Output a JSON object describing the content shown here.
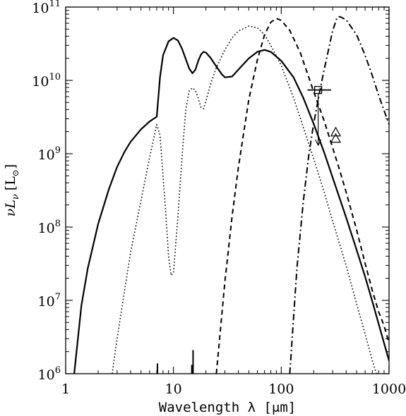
{
  "chart_data": {
    "type": "line",
    "title": "",
    "xlabel": "Wavelength λ [μm]",
    "ylabel": "νL",
    "ylabel_subscript": "ν",
    "ylabel_unit": "[L",
    "ylabel_unit_tail": "]",
    "x_scale": "log",
    "y_scale": "log",
    "xlim": [
      1,
      1000
    ],
    "ylim": [
      1000000,
      100000000000
    ],
    "grid": false,
    "legend": "none",
    "x_ticks": [
      {
        "value": 1,
        "label": "1"
      },
      {
        "value": 10,
        "label": "10"
      },
      {
        "value": 100,
        "label": "100"
      },
      {
        "value": 1000,
        "label": "1000"
      }
    ],
    "y_ticks": [
      {
        "value": 1000000,
        "base": "10",
        "exp": "6"
      },
      {
        "value": 10000000,
        "base": "10",
        "exp": "7"
      },
      {
        "value": 100000000,
        "base": "10",
        "exp": "8"
      },
      {
        "value": 1000000000,
        "base": "10",
        "exp": "9"
      },
      {
        "value": 10000000000,
        "base": "10",
        "exp": "10"
      },
      {
        "value": 100000000000,
        "base": "10",
        "exp": "11"
      }
    ],
    "series": [
      {
        "style": "solid",
        "points": [
          [
            1.2,
            1000000
          ],
          [
            1.4,
            8500000
          ],
          [
            1.6,
            27000000
          ],
          [
            2,
            110000000
          ],
          [
            2.5,
            320000000
          ],
          [
            3,
            660000000
          ],
          [
            3.5,
            1050000000
          ],
          [
            4,
            1450000000
          ],
          [
            5,
            2150000000
          ],
          [
            6,
            2750000000
          ],
          [
            7,
            3200000000
          ],
          [
            7.5,
            11000000000
          ],
          [
            8,
            22000000000
          ],
          [
            9,
            34000000000
          ],
          [
            10,
            38000000000
          ],
          [
            11,
            35000000000
          ],
          [
            12,
            27000000000
          ],
          [
            13,
            19500000000
          ],
          [
            14,
            14500000000
          ],
          [
            15,
            12500000000
          ],
          [
            16,
            14000000000
          ],
          [
            17,
            18500000000
          ],
          [
            18,
            22500000000
          ],
          [
            19,
            24500000000
          ],
          [
            20,
            24000000000
          ],
          [
            22,
            20500000000
          ],
          [
            25,
            15500000000
          ],
          [
            28,
            12200000000
          ],
          [
            30,
            11000000000
          ],
          [
            35,
            11300000000
          ],
          [
            40,
            14000000000
          ],
          [
            50,
            20000000000
          ],
          [
            60,
            24500000000
          ],
          [
            70,
            26000000000
          ],
          [
            80,
            24500000000
          ],
          [
            100,
            18500000000
          ],
          [
            130,
            11000000000
          ],
          [
            160,
            5800000000
          ],
          [
            200,
            2550000000
          ],
          [
            250,
            1040000000
          ],
          [
            300,
            470000000
          ],
          [
            400,
            135000000
          ],
          [
            500,
            49000000
          ],
          [
            600,
            21000000
          ],
          [
            700,
            9600000
          ],
          [
            800,
            4800000
          ],
          [
            1000,
            1500000
          ]
        ]
      },
      {
        "style": "dotted",
        "points": [
          [
            2.7,
            1000000
          ],
          [
            3,
            3000000
          ],
          [
            3.5,
            13000000
          ],
          [
            4,
            45000000
          ],
          [
            5,
            230000000
          ],
          [
            6,
            880000000
          ],
          [
            7,
            2500000000
          ],
          [
            7.5,
            1800000000
          ],
          [
            8,
            500000000
          ],
          [
            8.5,
            150000000
          ],
          [
            9,
            40000000
          ],
          [
            9.5,
            22000000
          ],
          [
            10,
            24000000
          ],
          [
            11,
            140000000
          ],
          [
            12,
            900000000
          ],
          [
            13,
            4000000000
          ],
          [
            14,
            7200000000
          ],
          [
            15,
            7900000000
          ],
          [
            16,
            7300000000
          ],
          [
            17,
            5700000000
          ],
          [
            18,
            4300000000
          ],
          [
            19,
            4100000000
          ],
          [
            20,
            5200000000
          ],
          [
            22,
            8700000000
          ],
          [
            25,
            15000000000
          ],
          [
            30,
            26000000000
          ],
          [
            35,
            38000000000
          ],
          [
            40,
            47000000000
          ],
          [
            50,
            55000000000
          ],
          [
            60,
            52000000000
          ],
          [
            70,
            42000000000
          ],
          [
            80,
            30000000000
          ],
          [
            100,
            16000000000
          ],
          [
            130,
            5800000000
          ],
          [
            160,
            2300000000
          ],
          [
            200,
            850000000
          ],
          [
            250,
            300000000
          ],
          [
            300,
            120000000
          ],
          [
            400,
            30000000
          ],
          [
            500,
            9000000
          ],
          [
            600,
            3500000
          ],
          [
            700,
            1500000
          ],
          [
            800,
            800000
          ]
        ]
      },
      {
        "style": "dashed",
        "points": [
          [
            25,
            1000000
          ],
          [
            30,
            18000000
          ],
          [
            35,
            140000000
          ],
          [
            40,
            650000000
          ],
          [
            50,
            5500000000
          ],
          [
            60,
            19000000000
          ],
          [
            70,
            42000000000
          ],
          [
            80,
            62000000000
          ],
          [
            90,
            70000000000
          ],
          [
            100,
            66000000000
          ],
          [
            120,
            48000000000
          ],
          [
            150,
            24000000000
          ],
          [
            180,
            11000000000
          ],
          [
            200,
            7000000000
          ],
          [
            250,
            2800000000
          ],
          [
            300,
            1200000000
          ],
          [
            350,
            580000000
          ],
          [
            400,
            300000000
          ],
          [
            500,
            92000000
          ],
          [
            600,
            32000000
          ],
          [
            700,
            13500000
          ],
          [
            800,
            7000000
          ],
          [
            900,
            4500000
          ],
          [
            1000,
            2600000
          ]
        ]
      },
      {
        "style": "dashdot",
        "points": [
          [
            120,
            1000000
          ],
          [
            140,
            28000000
          ],
          [
            160,
            220000000
          ],
          [
            180,
            950000000
          ],
          [
            200,
            2600000000
          ],
          [
            230,
            7700000000
          ],
          [
            250,
            14000000000
          ],
          [
            280,
            30000000000
          ],
          [
            300,
            48000000000
          ],
          [
            330,
            72000000000
          ],
          [
            350,
            74000000000
          ],
          [
            400,
            67000000000
          ],
          [
            500,
            42000000000
          ],
          [
            600,
            22000000000
          ],
          [
            700,
            11500000000
          ],
          [
            800,
            6300000000
          ],
          [
            1000,
            2500000000
          ]
        ]
      }
    ],
    "spike_segments": [
      {
        "style": "dashdot",
        "x": 7.1,
        "y_from": 1000000,
        "y_to": 1380000
      },
      {
        "style": "dashed",
        "x": 14.8,
        "y_from": 1000000,
        "y_to": 1320000
      },
      {
        "style": "dashed",
        "x": 15.2,
        "y_from": 1000000,
        "y_to": 2100000
      }
    ],
    "markers": [
      {
        "shape": "square-upper-limit",
        "x": 220,
        "y": 7400000000,
        "arrow_to": 1300000000,
        "hbar_from": 175,
        "hbar_to": 290
      },
      {
        "shape": "triangle",
        "x": 320,
        "y": 1950000000
      },
      {
        "shape": "triangle",
        "x": 320,
        "y": 1600000000
      }
    ]
  }
}
